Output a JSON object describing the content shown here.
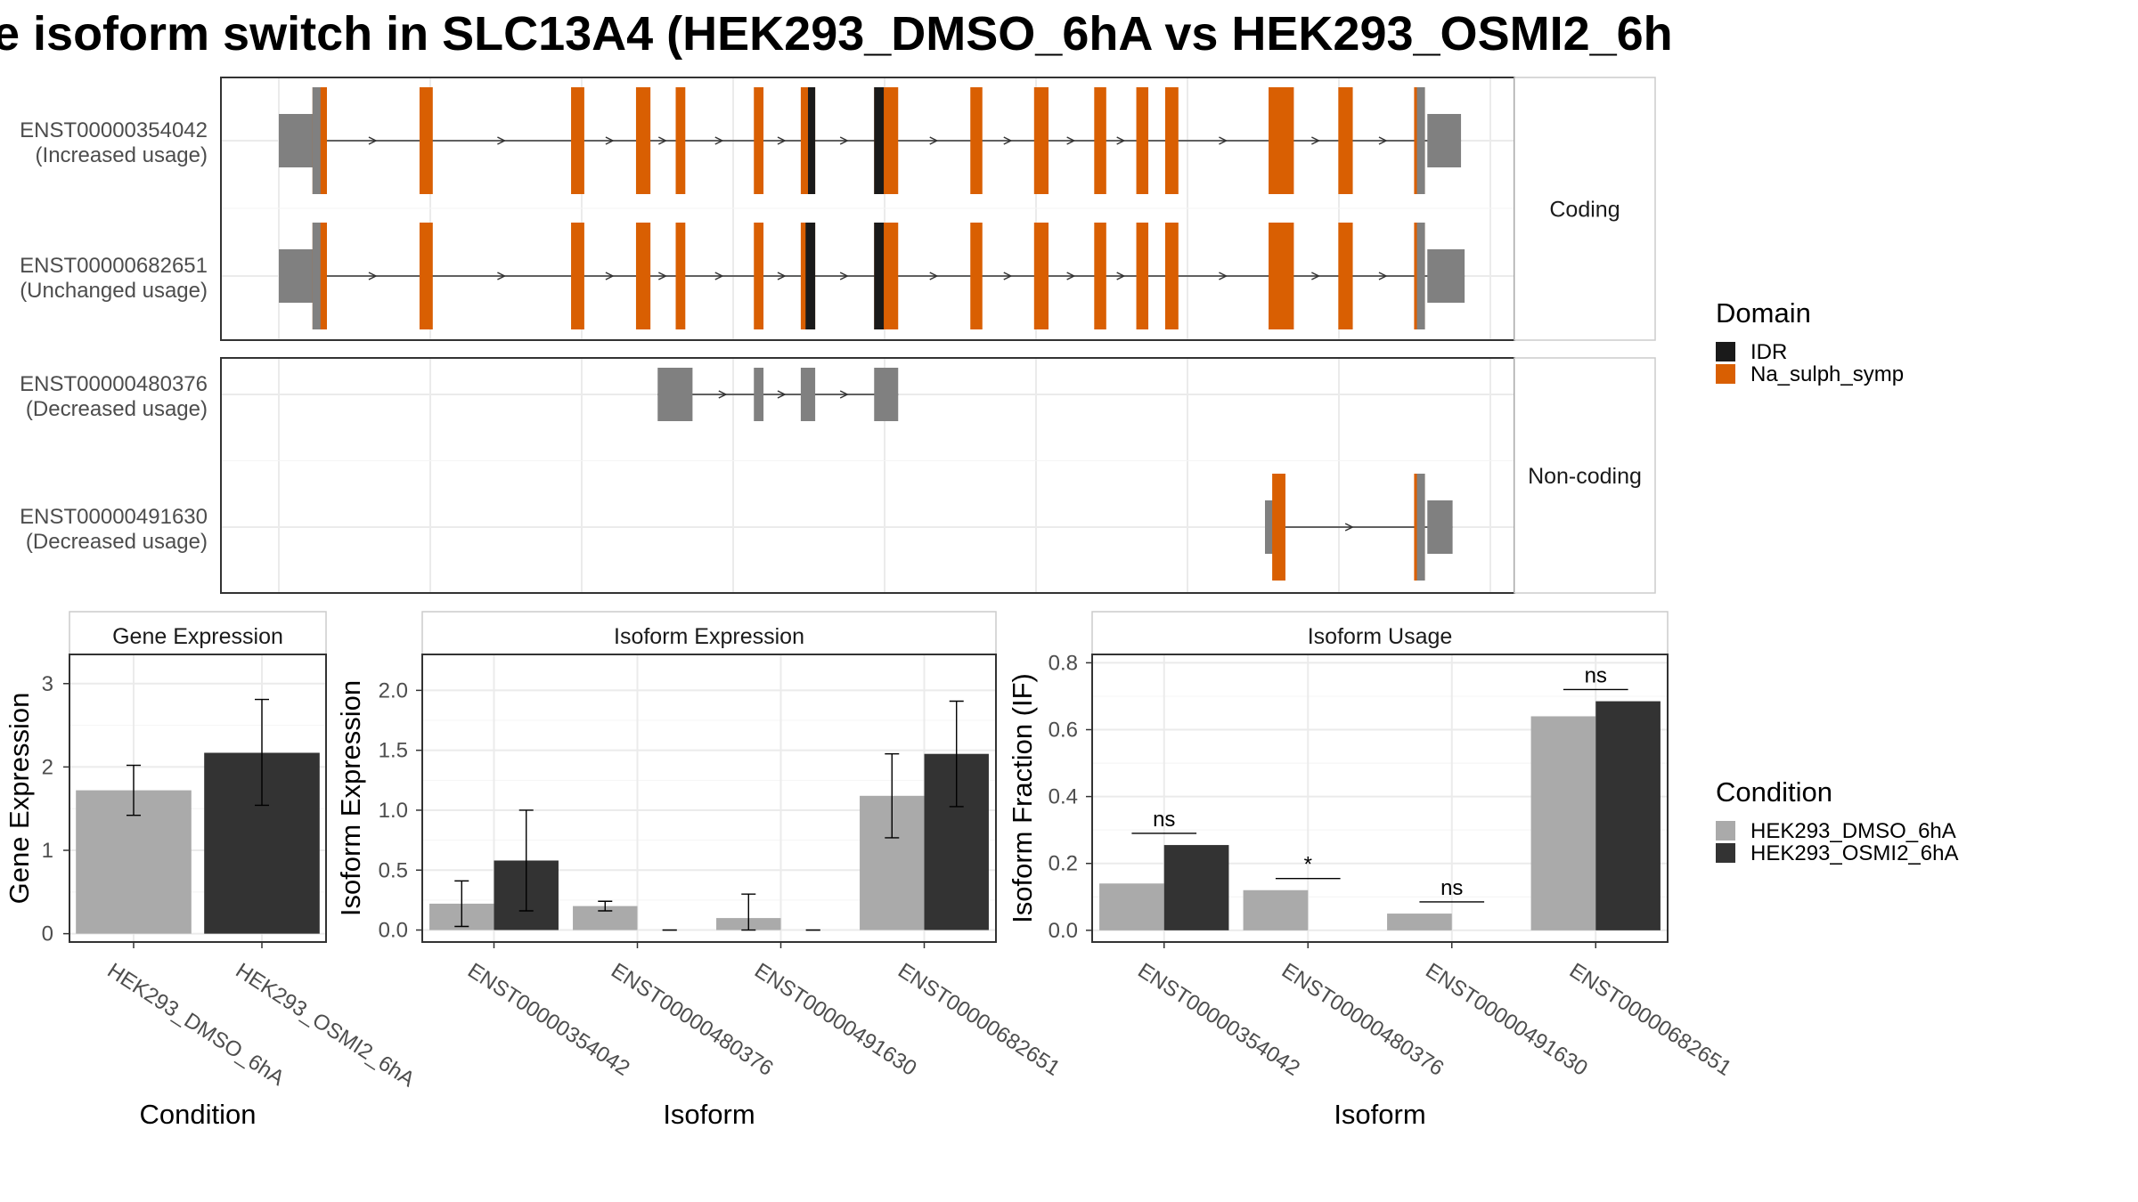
{
  "title": "e isoform switch in SLC13A4 (HEK293_DMSO_6hA vs HEK293_OSMI2_6h",
  "colors": {
    "idr": "#1a1a1a",
    "domain": "#d95f02",
    "utr": "#808080",
    "dmso": "#aaaaaa",
    "osmi": "#333333"
  },
  "structure": {
    "x_domain": [
      0,
      100
    ],
    "groups": [
      {
        "name": "Coding",
        "transcripts": [
          {
            "id": "ENST00000354042",
            "usage": "(Increased usage)",
            "utr5": [
              0,
              3.5
            ],
            "utr3": [
              95.5,
              98.3
            ],
            "cds_bounds": [
              3.0,
              96.0
            ],
            "exons": [
              [
                2.8,
                4.0
              ],
              [
                11.7,
                12.8
              ],
              [
                24.3,
                25.4
              ],
              [
                29.7,
                30.9
              ],
              [
                33.0,
                33.8
              ],
              [
                39.5,
                40.3
              ],
              [
                43.4,
                44.6
              ],
              [
                49.5,
                51.5
              ],
              [
                57.5,
                58.5
              ],
              [
                62.8,
                64.0
              ],
              [
                67.8,
                68.8
              ],
              [
                71.3,
                72.3
              ],
              [
                73.7,
                74.8
              ],
              [
                82.3,
                84.4
              ],
              [
                88.1,
                89.3
              ],
              [
                94.4,
                95.3
              ]
            ],
            "idr": [
              [
                44.0,
                44.6
              ],
              [
                49.5,
                50.3
              ]
            ]
          },
          {
            "id": "ENST00000682651",
            "usage": "(Unchanged usage)",
            "utr5": [
              0,
              3.5
            ],
            "utr3": [
              95.5,
              98.6
            ],
            "cds_bounds": [
              3.0,
              96.0
            ],
            "exons": [
              [
                2.8,
                4.0
              ],
              [
                11.7,
                12.8
              ],
              [
                24.3,
                25.4
              ],
              [
                29.7,
                30.9
              ],
              [
                33.0,
                33.8
              ],
              [
                39.5,
                40.3
              ],
              [
                43.4,
                44.6
              ],
              [
                49.5,
                51.5
              ],
              [
                57.5,
                58.5
              ],
              [
                62.8,
                64.0
              ],
              [
                67.8,
                68.8
              ],
              [
                71.3,
                72.3
              ],
              [
                73.7,
                74.8
              ],
              [
                82.3,
                84.4
              ],
              [
                88.1,
                89.3
              ],
              [
                94.4,
                95.3
              ]
            ],
            "idr": [
              [
                43.8,
                44.6
              ],
              [
                49.5,
                50.3
              ]
            ]
          }
        ]
      },
      {
        "name": "Non-coding",
        "transcripts": [
          {
            "id": "ENST00000480376",
            "usage": "(Decreased usage)",
            "nc_exons": [
              [
                31.5,
                34.4
              ],
              [
                39.5,
                40.3
              ],
              [
                43.4,
                44.6
              ],
              [
                49.5,
                51.5
              ]
            ]
          },
          {
            "id": "ENST00000491630",
            "usage": "(Decreased usage)",
            "utr5": [
              82.0,
              83.0
            ],
            "utr3": [
              95.5,
              97.6
            ],
            "exons": [
              [
                82.6,
                83.7
              ],
              [
                94.4,
                95.3
              ]
            ],
            "idr": []
          }
        ]
      }
    ]
  },
  "legend_domain": {
    "title": "Domain",
    "items": [
      {
        "label": "IDR",
        "color": "#1a1a1a"
      },
      {
        "label": "Na_sulph_symp",
        "color": "#d95f02"
      }
    ]
  },
  "legend_condition": {
    "title": "Condition",
    "items": [
      {
        "label": "HEK293_DMSO_6hA",
        "color": "#aaaaaa"
      },
      {
        "label": "HEK293_OSMI2_6hA",
        "color": "#333333"
      }
    ]
  },
  "chart_data": [
    {
      "type": "bar",
      "title": "Gene Expression",
      "xlabel": "Condition",
      "ylabel": "Gene Expression",
      "ylim": [
        -0.1,
        3.35
      ],
      "yticks": [
        0,
        1,
        2,
        3
      ],
      "ytick_labels": [
        "0",
        "1",
        "2",
        "3"
      ],
      "categories": [
        "HEK293_DMSO_6hA",
        "HEK293_OSMI2_6hA"
      ],
      "series": [
        {
          "name": "HEK293_DMSO_6hA",
          "values": [
            1.72,
            null
          ],
          "err_low": [
            1.42,
            null
          ],
          "err_high": [
            2.02,
            null
          ]
        },
        {
          "name": "HEK293_OSMI2_6hA",
          "values": [
            null,
            2.17
          ],
          "err_low": [
            null,
            1.54
          ],
          "err_high": [
            null,
            2.81
          ]
        }
      ]
    },
    {
      "type": "bar",
      "title": "Isoform Expression",
      "xlabel": "Isoform",
      "ylabel": "Isoform Expression",
      "ylim": [
        -0.1,
        2.3
      ],
      "yticks": [
        0,
        0.5,
        1,
        1.5,
        2
      ],
      "ytick_labels": [
        "0.0",
        "0.5",
        "1.0",
        "1.5",
        "2.0"
      ],
      "categories": [
        "ENST00000354042",
        "ENST00000480376",
        "ENST00000491630",
        "ENST00000682651"
      ],
      "series": [
        {
          "name": "HEK293_DMSO_6hA",
          "values": [
            0.22,
            0.2,
            0.1,
            1.12
          ],
          "err_low": [
            0.03,
            0.16,
            0.0,
            0.77
          ],
          "err_high": [
            0.41,
            0.24,
            0.3,
            1.47
          ]
        },
        {
          "name": "HEK293_OSMI2_6hA",
          "values": [
            0.58,
            0.0,
            0.0,
            1.47
          ],
          "err_low": [
            0.16,
            0.0,
            0.0,
            1.03
          ],
          "err_high": [
            1.0,
            0.0,
            0.0,
            1.91
          ]
        }
      ]
    },
    {
      "type": "bar",
      "title": "Isoform Usage",
      "xlabel": "Isoform",
      "ylabel": "Isoform Fraction (IF)",
      "ylim": [
        -0.035,
        0.825
      ],
      "yticks": [
        0,
        0.2,
        0.4,
        0.6,
        0.8
      ],
      "ytick_labels": [
        "0.0",
        "0.2",
        "0.4",
        "0.6",
        "0.8"
      ],
      "categories": [
        "ENST00000354042",
        "ENST00000480376",
        "ENST00000491630",
        "ENST00000682651"
      ],
      "series": [
        {
          "name": "HEK293_DMSO_6hA",
          "values": [
            0.14,
            0.12,
            0.05,
            0.64
          ]
        },
        {
          "name": "HEK293_OSMI2_6hA",
          "values": [
            0.255,
            0.0,
            0.0,
            0.685
          ]
        }
      ],
      "annotations": [
        {
          "category": "ENST00000354042",
          "label": "ns",
          "y": 0.29
        },
        {
          "category": "ENST00000480376",
          "label": "*",
          "y": 0.155
        },
        {
          "category": "ENST00000491630",
          "label": "ns",
          "y": 0.085
        },
        {
          "category": "ENST00000682651",
          "label": "ns",
          "y": 0.72
        }
      ]
    }
  ]
}
